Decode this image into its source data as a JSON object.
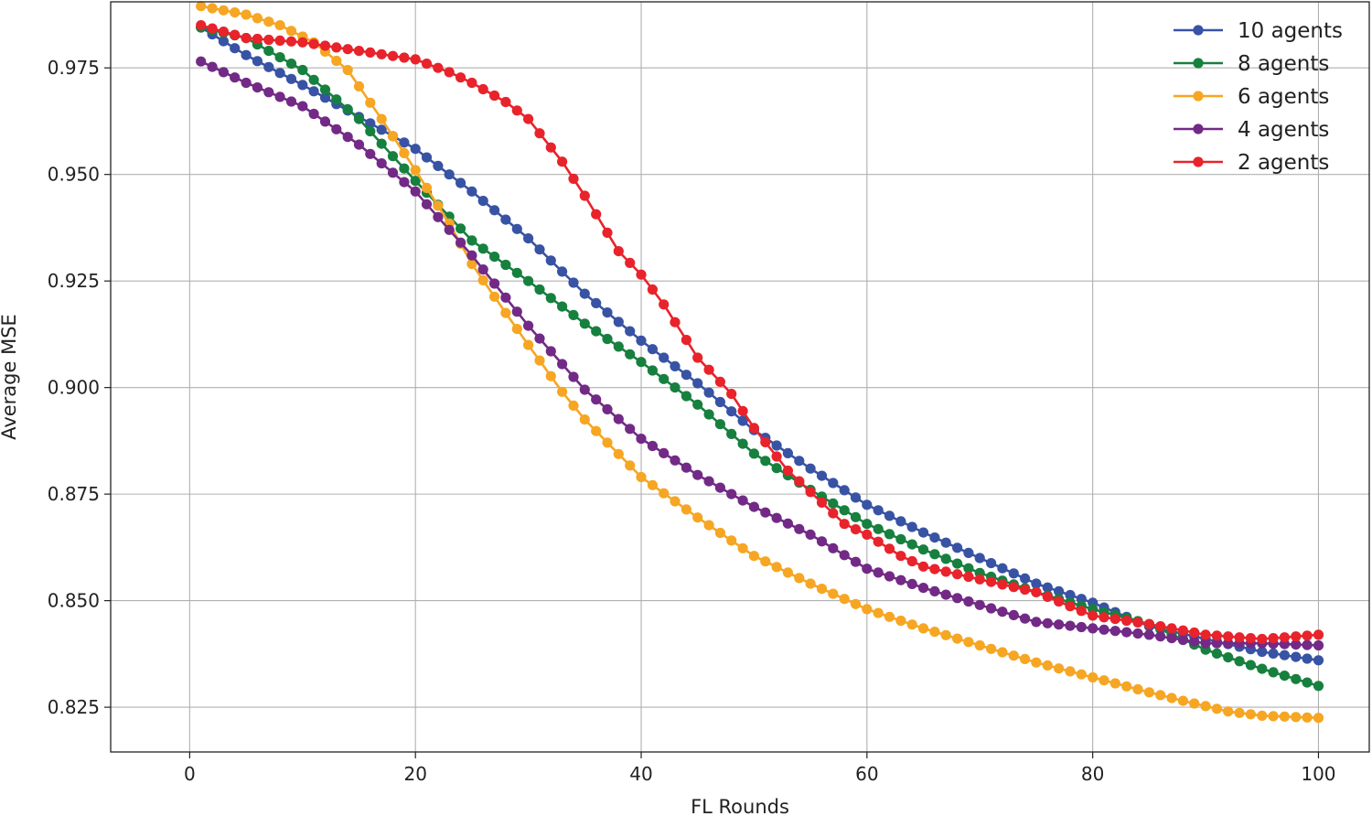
{
  "chart_data": {
    "type": "line",
    "xlabel": "FL Rounds",
    "ylabel": "Average MSE",
    "xlim": [
      -7,
      104.5
    ],
    "ylim": [
      0.8145,
      0.9905
    ],
    "xticks": [
      0,
      20,
      40,
      60,
      80,
      100
    ],
    "yticks": [
      0.825,
      0.85,
      0.875,
      0.9,
      0.925,
      0.95,
      0.975
    ],
    "ytick_labels": [
      "0.825",
      "0.850",
      "0.875",
      "0.900",
      "0.925",
      "0.950",
      "0.975"
    ],
    "grid": true,
    "legend_position": "top-right",
    "x_start": 1,
    "x_end": 100,
    "series": [
      {
        "name": "10 agents",
        "color": "#3853a4",
        "anchors": [
          [
            1,
            0.9845
          ],
          [
            5,
            0.978
          ],
          [
            10,
            0.971
          ],
          [
            15,
            0.9635
          ],
          [
            20,
            0.956
          ],
          [
            25,
            0.946
          ],
          [
            30,
            0.935
          ],
          [
            35,
            0.922
          ],
          [
            40,
            0.911
          ],
          [
            45,
            0.901
          ],
          [
            50,
            0.89
          ],
          [
            55,
            0.881
          ],
          [
            60,
            0.8725
          ],
          [
            65,
            0.866
          ],
          [
            70,
            0.86
          ],
          [
            75,
            0.854
          ],
          [
            80,
            0.8495
          ],
          [
            85,
            0.844
          ],
          [
            90,
            0.841
          ],
          [
            95,
            0.838
          ],
          [
            100,
            0.836
          ]
        ]
      },
      {
        "name": "8 agents",
        "color": "#17803f",
        "anchors": [
          [
            1,
            0.9845
          ],
          [
            5,
            0.982
          ],
          [
            10,
            0.9745
          ],
          [
            15,
            0.963
          ],
          [
            20,
            0.9485
          ],
          [
            25,
            0.9345
          ],
          [
            30,
            0.925
          ],
          [
            35,
            0.915
          ],
          [
            40,
            0.906
          ],
          [
            45,
            0.896
          ],
          [
            50,
            0.8845
          ],
          [
            55,
            0.876
          ],
          [
            60,
            0.868
          ],
          [
            65,
            0.862
          ],
          [
            70,
            0.8565
          ],
          [
            75,
            0.852
          ],
          [
            80,
            0.848
          ],
          [
            85,
            0.8445
          ],
          [
            90,
            0.8385
          ],
          [
            95,
            0.834
          ],
          [
            100,
            0.83
          ]
        ]
      },
      {
        "name": "6 agents",
        "color": "#f6a623",
        "anchors": [
          [
            1,
            0.9895
          ],
          [
            5,
            0.9875
          ],
          [
            8,
            0.985
          ],
          [
            11,
            0.981
          ],
          [
            14,
            0.9745
          ],
          [
            17,
            0.963
          ],
          [
            20,
            0.951
          ],
          [
            23,
            0.9385
          ],
          [
            25,
            0.929
          ],
          [
            28,
            0.9175
          ],
          [
            30,
            0.91
          ],
          [
            33,
            0.899
          ],
          [
            35,
            0.8925
          ],
          [
            40,
            0.879
          ],
          [
            45,
            0.8695
          ],
          [
            50,
            0.8605
          ],
          [
            55,
            0.854
          ],
          [
            60,
            0.848
          ],
          [
            65,
            0.8435
          ],
          [
            70,
            0.8395
          ],
          [
            75,
            0.8355
          ],
          [
            80,
            0.832
          ],
          [
            85,
            0.8285
          ],
          [
            88,
            0.8265
          ],
          [
            92,
            0.824
          ],
          [
            95,
            0.823
          ],
          [
            100,
            0.8225
          ]
        ]
      },
      {
        "name": "4 agents",
        "color": "#722a86",
        "anchors": [
          [
            1,
            0.9765
          ],
          [
            5,
            0.9715
          ],
          [
            10,
            0.966
          ],
          [
            15,
            0.957
          ],
          [
            20,
            0.946
          ],
          [
            25,
            0.931
          ],
          [
            30,
            0.9145
          ],
          [
            35,
            0.8995
          ],
          [
            40,
            0.888
          ],
          [
            45,
            0.8795
          ],
          [
            50,
            0.872
          ],
          [
            55,
            0.8655
          ],
          [
            60,
            0.8575
          ],
          [
            65,
            0.853
          ],
          [
            70,
            0.849
          ],
          [
            75,
            0.845
          ],
          [
            80,
            0.8435
          ],
          [
            85,
            0.842
          ],
          [
            90,
            0.84
          ],
          [
            95,
            0.84
          ],
          [
            100,
            0.8395
          ]
        ]
      },
      {
        "name": "2 agents",
        "color": "#e8232b",
        "anchors": [
          [
            1,
            0.985
          ],
          [
            5,
            0.982
          ],
          [
            10,
            0.981
          ],
          [
            15,
            0.979
          ],
          [
            20,
            0.977
          ],
          [
            23,
            0.974
          ],
          [
            25,
            0.9715
          ],
          [
            28,
            0.967
          ],
          [
            30,
            0.963
          ],
          [
            33,
            0.953
          ],
          [
            35,
            0.945
          ],
          [
            38,
            0.932
          ],
          [
            40,
            0.9265
          ],
          [
            42,
            0.9195
          ],
          [
            45,
            0.907
          ],
          [
            48,
            0.8985
          ],
          [
            50,
            0.8905
          ],
          [
            53,
            0.8805
          ],
          [
            55,
            0.8755
          ],
          [
            58,
            0.868
          ],
          [
            60,
            0.8655
          ],
          [
            63,
            0.8605
          ],
          [
            65,
            0.858
          ],
          [
            70,
            0.855
          ],
          [
            75,
            0.852
          ],
          [
            80,
            0.8465
          ],
          [
            85,
            0.8445
          ],
          [
            90,
            0.842
          ],
          [
            95,
            0.841
          ],
          [
            100,
            0.842
          ]
        ]
      }
    ]
  }
}
